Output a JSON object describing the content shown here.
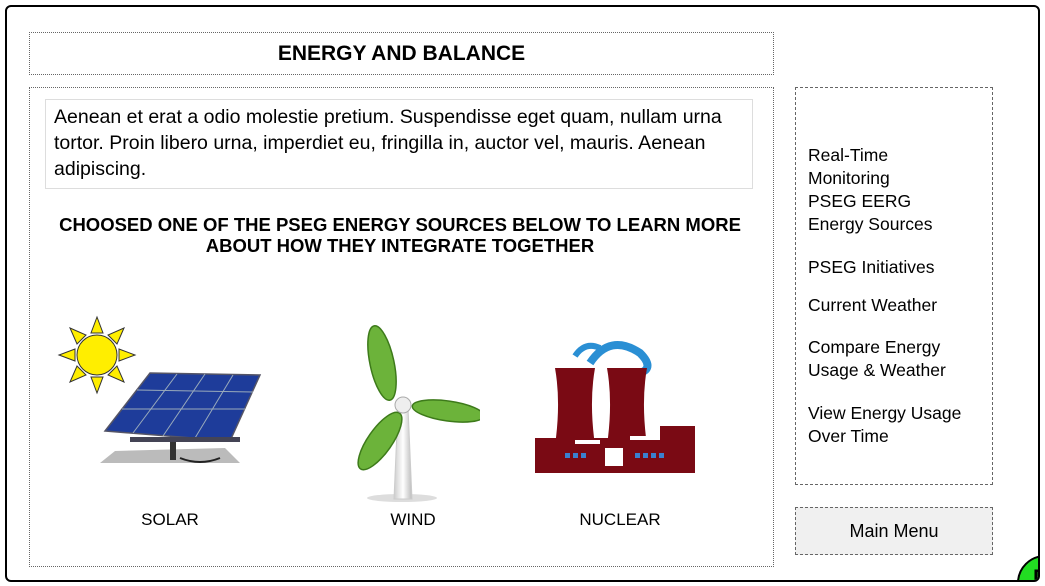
{
  "header": {
    "title": "ENERGY AND BALANCE"
  },
  "intro": {
    "text": "Aenean et erat a odio molestie pretium. Suspendisse eget quam, nullam urna tortor. Proin libero urna, imperdiet eu, fringilla in, auctor vel, mauris. Aenean adipiscing."
  },
  "prompt": "CHOOSED ONE OF THE PSEG ENERGY SOURCES BELOW TO LEARN MORE ABOUT HOW THEY INTEGRATE TOGETHER",
  "sources": [
    {
      "label": "SOLAR"
    },
    {
      "label": "WIND"
    },
    {
      "label": "NUCLEAR"
    }
  ],
  "menu": {
    "items": [
      "Real-Time Monitoring",
      "PSEG EERG Energy Sources",
      "PSEG Initiatives",
      "Current Weather",
      "Compare Energy Usage & Weather",
      "View Energy Usage Over Time"
    ],
    "main_menu": "Main Menu"
  },
  "badge": "P"
}
